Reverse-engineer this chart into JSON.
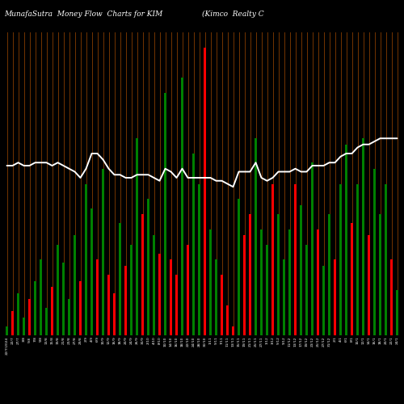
{
  "title_left": "MunafaSutra  Money Flow  Charts for KIM",
  "title_right": "(Kimco  Realty C",
  "background_color": "#000000",
  "bar_colors": [
    "green",
    "red",
    "green",
    "green",
    "red",
    "green",
    "green",
    "green",
    "red",
    "green",
    "green",
    "green",
    "green",
    "red",
    "green",
    "green",
    "red",
    "green",
    "red",
    "red",
    "green",
    "red",
    "green",
    "green",
    "red",
    "green",
    "green",
    "red",
    "green",
    "red",
    "red",
    "green",
    "red",
    "green",
    "green",
    "red",
    "green",
    "green",
    "red",
    "red",
    "red",
    "green",
    "red",
    "red",
    "green",
    "green",
    "green",
    "red",
    "green",
    "green",
    "green",
    "red",
    "green",
    "green",
    "green",
    "red",
    "green",
    "green",
    "red",
    "green",
    "green",
    "red",
    "green",
    "green",
    "red",
    "green",
    "green",
    "green",
    "red",
    "green"
  ],
  "bar_heights": [
    3,
    8,
    14,
    6,
    12,
    18,
    25,
    9,
    16,
    30,
    24,
    12,
    33,
    18,
    50,
    42,
    25,
    55,
    20,
    14,
    37,
    23,
    30,
    65,
    40,
    45,
    33,
    27,
    80,
    25,
    20,
    85,
    30,
    60,
    50,
    95,
    35,
    25,
    20,
    10,
    3,
    45,
    33,
    40,
    65,
    35,
    30,
    50,
    40,
    25,
    35,
    50,
    43,
    30,
    57,
    35,
    23,
    40,
    25,
    50,
    63,
    37,
    50,
    65,
    33,
    55,
    40,
    50,
    25,
    15
  ],
  "line_values": [
    56,
    56,
    57,
    56,
    56,
    57,
    57,
    57,
    56,
    57,
    56,
    55,
    54,
    52,
    55,
    60,
    60,
    58,
    55,
    53,
    53,
    52,
    52,
    53,
    53,
    53,
    52,
    51,
    55,
    54,
    52,
    55,
    52,
    52,
    52,
    52,
    52,
    51,
    51,
    50,
    49,
    54,
    54,
    54,
    57,
    52,
    51,
    52,
    54,
    54,
    54,
    55,
    54,
    54,
    56,
    56,
    56,
    57,
    57,
    59,
    60,
    60,
    62,
    63,
    63,
    64,
    65,
    65,
    65,
    65
  ],
  "xlabels": [
    "22/7/2024",
    "22/7",
    "27/7",
    "3/8",
    "5/8",
    "7/8",
    "9/8",
    "13/8",
    "15/8",
    "19/8",
    "21/8",
    "23/8",
    "27/8",
    "29/8",
    "2/9",
    "4/9",
    "6/9",
    "10/9",
    "12/9",
    "16/9",
    "18/9",
    "20/9",
    "24/9",
    "26/9",
    "30/9",
    "2/10",
    "4/10",
    "8/10",
    "10/10",
    "14/10",
    "16/10",
    "18/10",
    "22/10",
    "24/10",
    "28/10",
    "30/10",
    "1/11",
    "5/11",
    "7/11",
    "11/11",
    "13/11",
    "15/11",
    "19/11",
    "21/11",
    "25/11",
    "27/11",
    "1/12",
    "3/12",
    "5/12",
    "9/12",
    "11/12",
    "13/12",
    "17/12",
    "19/12",
    "23/12",
    "25/12",
    "27/12",
    "31/12",
    "2/1",
    "4/1",
    "6/1",
    "8/1",
    "10/1",
    "12/1",
    "14/1",
    "16/1",
    "18/1",
    "20/1",
    "22/1",
    "24/1"
  ],
  "n_bars": 70,
  "grid_color": "#7B3800",
  "line_color": "#ffffff",
  "ylim_max": 100,
  "title_fontsize": 6.5,
  "label_fontsize": 3.2
}
